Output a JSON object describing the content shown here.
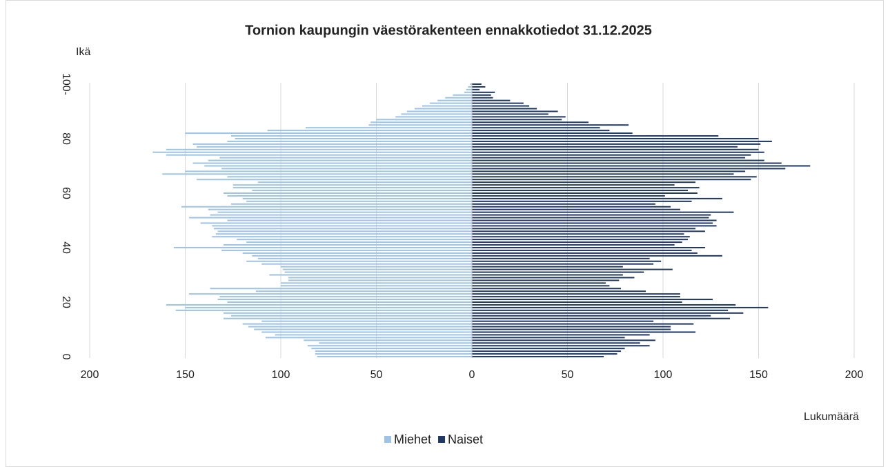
{
  "chart_data": {
    "type": "pyramid",
    "title": "Tornion kaupungin väestörakenteen ennakkotiedot 31.12.2025",
    "y_label": "Ikä",
    "x_label": "Lukumäärä",
    "categories": [
      "0",
      null,
      null,
      null,
      null,
      null,
      null,
      null,
      null,
      null,
      null,
      null,
      null,
      null,
      null,
      null,
      null,
      null,
      null,
      null,
      "20",
      null,
      null,
      null,
      null,
      null,
      null,
      null,
      null,
      null,
      null,
      null,
      null,
      null,
      null,
      null,
      null,
      null,
      null,
      null,
      "40",
      null,
      null,
      null,
      null,
      null,
      null,
      null,
      null,
      null,
      null,
      null,
      null,
      null,
      null,
      null,
      null,
      null,
      null,
      null,
      "60",
      null,
      null,
      null,
      null,
      null,
      null,
      null,
      null,
      null,
      null,
      null,
      null,
      null,
      null,
      null,
      null,
      null,
      null,
      null,
      "80",
      null,
      null,
      null,
      null,
      null,
      null,
      null,
      null,
      null,
      null,
      null,
      null,
      null,
      null,
      null,
      null,
      null,
      null,
      null,
      "100-"
    ],
    "series": [
      {
        "name": "Miehet",
        "color": "#9dc3e6",
        "values": [
          -81,
          -82,
          -82,
          -84,
          -86,
          -80,
          -88,
          -108,
          -103,
          -110,
          -114,
          -117,
          -120,
          -110,
          -130,
          -126,
          -130,
          -155,
          -150,
          -160,
          -128,
          -133,
          -132,
          -148,
          -113,
          -137,
          -100,
          -100,
          -96,
          -96,
          -106,
          -98,
          -99,
          -100,
          -110,
          -118,
          -112,
          -115,
          -120,
          -131,
          -156,
          -130,
          -118,
          -123,
          -136,
          -134,
          -133,
          -135,
          -136,
          -142,
          -128,
          -148,
          -137,
          -133,
          -138,
          -152,
          -126,
          -118,
          -120,
          -128,
          -130,
          -115,
          -125,
          -125,
          -112,
          -144,
          -128,
          -162,
          -150,
          -131,
          -140,
          -146,
          -138,
          -132,
          -160,
          -167,
          -160,
          -144,
          -146,
          -128,
          -124,
          -126,
          -150,
          -107,
          -87,
          -54,
          -53,
          -50,
          -40,
          -37,
          -34,
          -30,
          -26,
          -22,
          -18,
          -14,
          -10,
          -4,
          -3,
          -2,
          -1
        ]
      },
      {
        "name": "Naiset",
        "color": "#1f3864",
        "values": [
          69,
          76,
          78,
          80,
          93,
          88,
          96,
          80,
          93,
          117,
          104,
          104,
          116,
          95,
          135,
          125,
          142,
          134,
          155,
          138,
          110,
          126,
          109,
          109,
          91,
          78,
          72,
          70,
          77,
          85,
          79,
          90,
          105,
          79,
          95,
          99,
          93,
          131,
          118,
          115,
          122,
          106,
          110,
          113,
          114,
          111,
          122,
          117,
          128,
          126,
          128,
          124,
          125,
          137,
          109,
          104,
          96,
          115,
          131,
          101,
          118,
          113,
          119,
          106,
          117,
          146,
          149,
          137,
          143,
          164,
          177,
          162,
          153,
          143,
          146,
          153,
          150,
          139,
          151,
          157,
          150,
          129,
          84,
          72,
          67,
          82,
          61,
          47,
          49,
          40,
          45,
          34,
          30,
          27,
          20,
          11,
          10,
          12,
          4,
          7,
          5
        ]
      }
    ],
    "xlim": [
      -200,
      200
    ],
    "xticks": [
      {
        "value": -200,
        "label": "200"
      },
      {
        "value": -150,
        "label": "150"
      },
      {
        "value": -100,
        "label": "100"
      },
      {
        "value": -50,
        "label": "50"
      },
      0,
      50,
      100,
      150,
      200
    ],
    "grid": true,
    "legend": "bottom"
  }
}
